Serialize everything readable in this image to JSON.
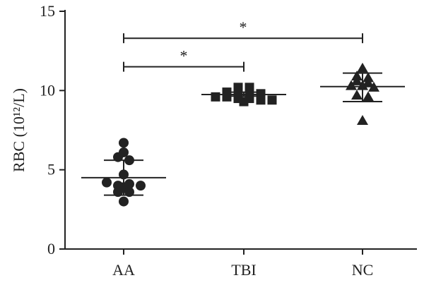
{
  "chart_data": {
    "type": "scatter",
    "title": "",
    "xlabel": "",
    "ylabel": "RBC (10¹²/L)",
    "ylim": [
      0,
      15
    ],
    "yticks": [
      "0",
      "5",
      "10",
      "15"
    ],
    "grid": false,
    "legend": "none",
    "categories": [
      "AA",
      "TBI",
      "NC"
    ],
    "series": [
      {
        "category": "AA",
        "marker": "circle",
        "values": [
          6.7,
          5.8,
          6.1,
          5.6,
          4.7,
          4.2,
          4.0,
          3.9,
          4.1,
          4.0,
          3.6,
          3.6,
          3.0
        ],
        "mean": 4.5,
        "sd_low": 3.4,
        "sd_high": 5.6
      },
      {
        "category": "TBI",
        "marker": "square",
        "values": [
          10.2,
          10.2,
          9.9,
          9.8,
          9.8,
          9.6,
          9.6,
          9.5,
          9.5,
          9.4,
          9.3,
          9.4,
          9.8
        ],
        "mean": 9.75,
        "sd_low": 9.65,
        "sd_high": 9.9
      },
      {
        "category": "NC",
        "marker": "triangle",
        "values": [
          11.4,
          10.9,
          10.8,
          10.6,
          10.5,
          10.3,
          10.3,
          10.2,
          9.7,
          9.6,
          8.1
        ],
        "mean": 10.25,
        "sd_low": 9.3,
        "sd_high": 11.1
      }
    ],
    "annotations": [
      {
        "from": "AA",
        "to": "TBI",
        "y": 11.5,
        "label": "*"
      },
      {
        "from": "AA",
        "to": "NC",
        "y": 13.3,
        "label": "*"
      }
    ],
    "colors": {
      "marker": "#222222",
      "axis": "#222222"
    }
  }
}
